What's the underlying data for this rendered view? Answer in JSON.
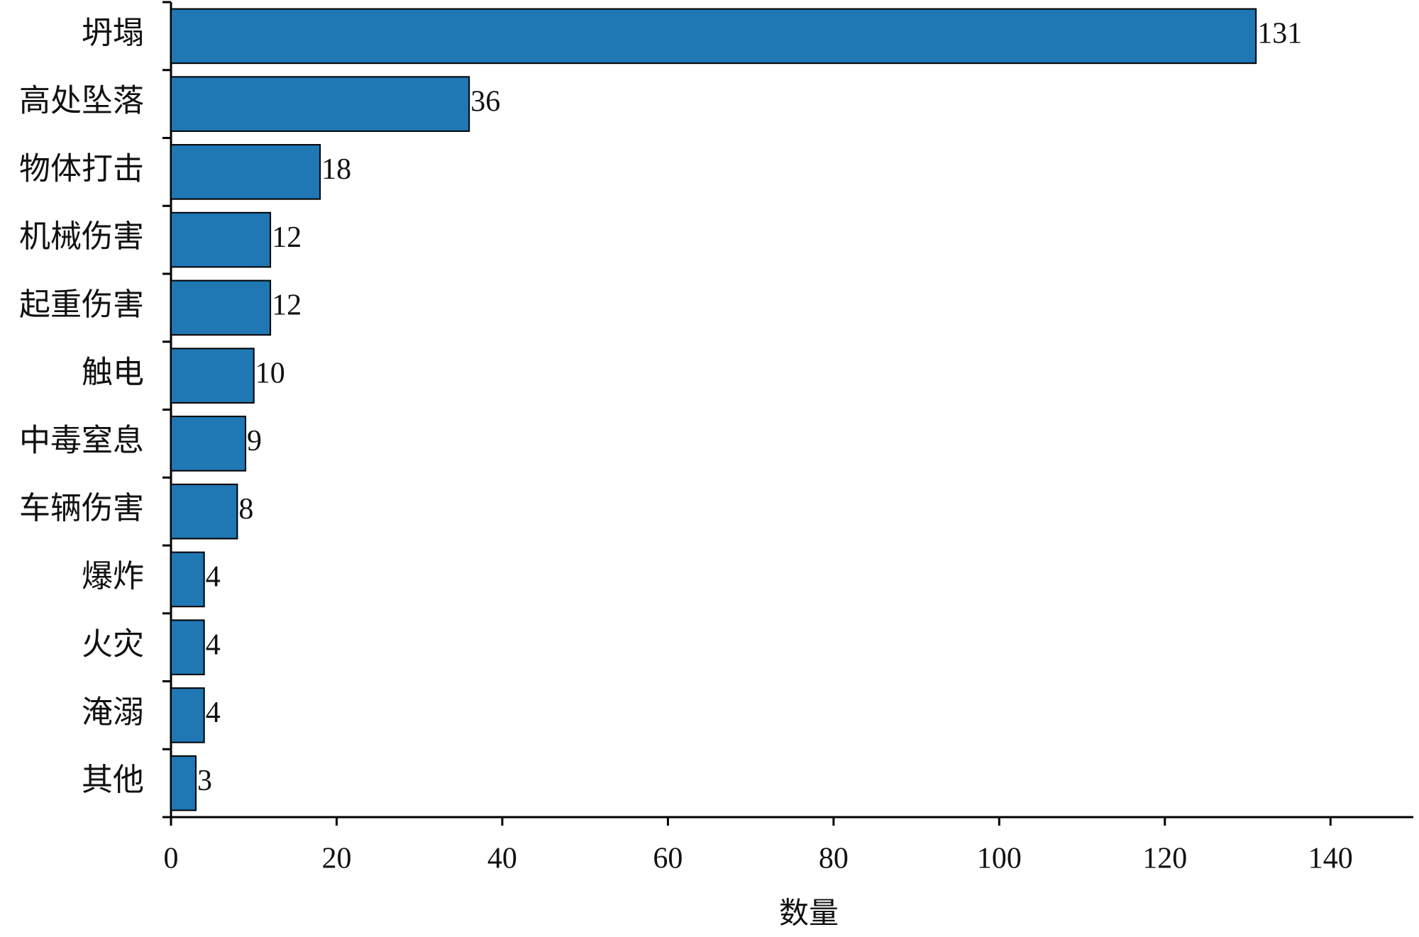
{
  "chart_data": {
    "type": "barh",
    "x_label": "数量",
    "categories": [
      "坍塌",
      "高处坠落",
      "物体打击",
      "机械伤害",
      "起重伤害",
      "触电",
      "中毒窒息",
      "车辆伤害",
      "爆炸",
      "火灾",
      "淹溺",
      "其他"
    ],
    "values": [
      131,
      36,
      18,
      12,
      12,
      10,
      9,
      8,
      4,
      4,
      4,
      3
    ],
    "color": "#1f77b4",
    "xlim": [
      0,
      150
    ],
    "xticks": [
      0,
      20,
      40,
      60,
      80,
      100,
      120,
      140
    ],
    "grid": false
  }
}
